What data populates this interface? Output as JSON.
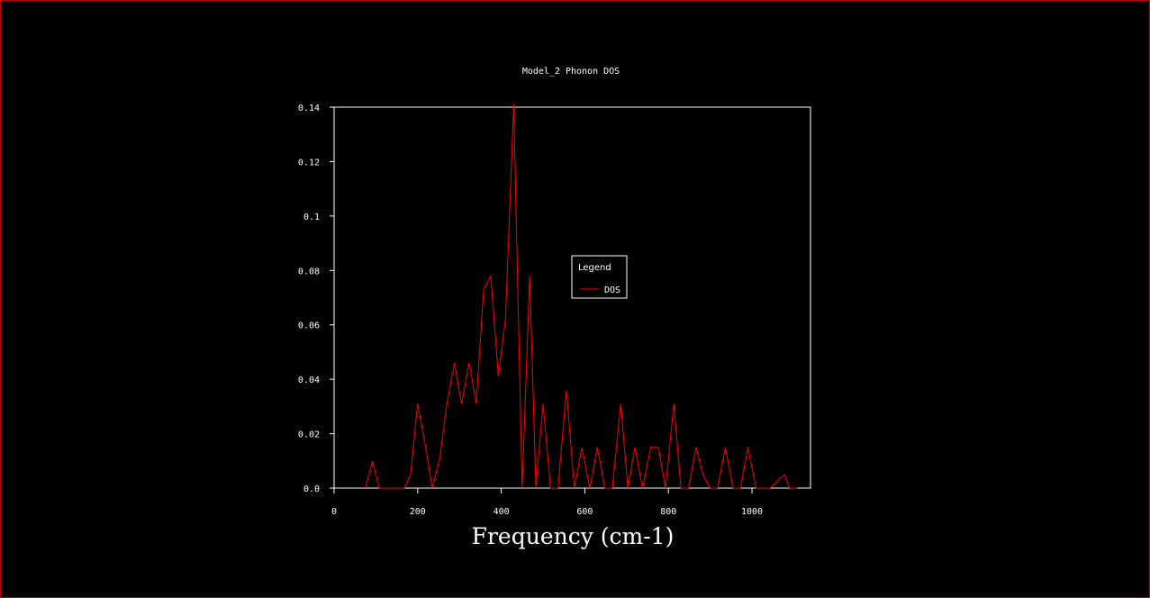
{
  "chart_data": {
    "type": "line",
    "title": "Model_2 Phonon DOS",
    "xlabel": "Frequency (cm-1)",
    "ylabel": "",
    "xlim": [
      0,
      1140
    ],
    "ylim": [
      0,
      0.14
    ],
    "x_ticks": [
      "0",
      "200",
      "400",
      "600",
      "800",
      "1000"
    ],
    "y_ticks": [
      "0.0",
      "0.02",
      "0.04",
      "0.06",
      "0.08",
      "0.1",
      "0.12",
      "0.14"
    ],
    "grid": false,
    "legend": {
      "title": "Legend",
      "placement": "center-right"
    },
    "series": [
      {
        "name": "DOS",
        "color": "#ff0000",
        "x": [
          75,
          92,
          108,
          168,
          183,
          200,
          218,
          235,
          253,
          270,
          288,
          305,
          323,
          340,
          358,
          375,
          393,
          410,
          430,
          450,
          468,
          483,
          500,
          518,
          536,
          556,
          575,
          593,
          612,
          630,
          648,
          666,
          686,
          703,
          720,
          738,
          758,
          776,
          793,
          813,
          830,
          848,
          866,
          883,
          900,
          918,
          936,
          955,
          973,
          990,
          1010,
          1028,
          1043,
          1078,
          1090,
          1108
        ],
        "y": [
          0.0,
          0.01,
          0.0,
          0.0,
          0.005,
          0.031,
          0.016,
          0.0,
          0.011,
          0.031,
          0.046,
          0.031,
          0.046,
          0.031,
          0.073,
          0.078,
          0.041,
          0.062,
          0.141,
          0.0,
          0.078,
          0.0,
          0.031,
          0.0,
          0.0,
          0.036,
          0.0,
          0.015,
          0.0,
          0.015,
          0.0,
          0.0,
          0.031,
          0.0,
          0.015,
          0.0,
          0.015,
          0.015,
          0.0,
          0.031,
          0.0,
          0.0,
          0.015,
          0.005,
          0.0,
          0.0,
          0.015,
          0.0,
          0.0,
          0.015,
          0.0,
          0.0,
          0.0,
          0.005,
          0.0,
          0.0
        ]
      }
    ]
  }
}
